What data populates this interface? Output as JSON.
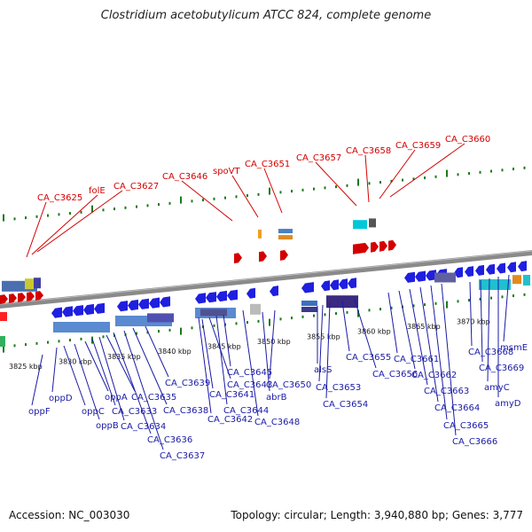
{
  "title": "Clostridium acetobutylicum ATCC 824, complete genome",
  "footer": {
    "accession": "Accession: NC_003030",
    "summary": "Topology: circular; Length: 3,940,880 bp; Genes: 3,777"
  },
  "colors": {
    "forward": "#d40000",
    "reverse": "#1a1aa6",
    "backbone": "#888888",
    "tick": "#1a7a1a"
  },
  "ticks": [
    "3825 kbp",
    "3830 kbp",
    "3835 kbp",
    "3840 kbp",
    "3845 kbp",
    "3850 kbp",
    "3855 kbp",
    "3860 kbp",
    "3865 kbp",
    "3870 kbp"
  ],
  "forward_labels": [
    "CA_C3625",
    "folE",
    "CA_C3627",
    "CA_C3646",
    "spoVT",
    "CA_C3651",
    "CA_C3657",
    "CA_C3658",
    "CA_C3659",
    "CA_C3660"
  ],
  "reverse_labels": [
    "oppF",
    "oppD",
    "oppC",
    "oppB",
    "oppA",
    "CA_C3633",
    "CA_C3634",
    "CA_C3635",
    "CA_C3636",
    "CA_C3637",
    "CA_C3638",
    "CA_C3639",
    "CA_C3641",
    "CA_C3642",
    "CA_C3643",
    "CA_C3644",
    "CA_C3645",
    "abrB",
    "CA_C3648",
    "CA_C3650",
    "alsS",
    "CA_C3653",
    "CA_C3654",
    "CA_C3655",
    "CA_C3656",
    "CA_C3661",
    "CA_C3662",
    "CA_C3663",
    "CA_C3664",
    "CA_C3665",
    "CA_C3666",
    "CA_C3668",
    "CA_C3669",
    "amyC",
    "amyD",
    "msmE"
  ]
}
